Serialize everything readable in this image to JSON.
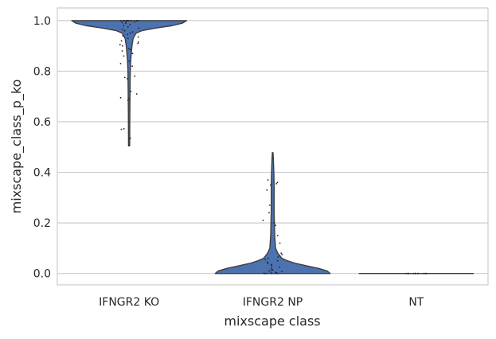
{
  "chart_data": {
    "type": "violin",
    "title": "",
    "xlabel": "mixscape class",
    "ylabel": "mixscape_class_p_ko",
    "categories": [
      "IFNGR2 KO",
      "IFNGR2 NP",
      "NT"
    ],
    "ylim": [
      -0.045,
      1.05
    ],
    "yticks": [
      0.0,
      0.2,
      0.4,
      0.6,
      0.8,
      1.0
    ],
    "ytick_labels": [
      "0.0",
      "0.2",
      "0.4",
      "0.6",
      "0.8",
      "1.0"
    ],
    "grid": "horizontal",
    "violin_color": "#4c72b0",
    "outline_color": "#3d3d3d",
    "point_color": "#222222",
    "series": [
      {
        "category": "IFNGR2 KO",
        "min": 0.505,
        "max": 1.0,
        "density": [
          [
            0.505,
            0.01
          ],
          [
            0.6,
            0.012
          ],
          [
            0.7,
            0.015
          ],
          [
            0.8,
            0.02
          ],
          [
            0.85,
            0.03
          ],
          [
            0.9,
            0.05
          ],
          [
            0.93,
            0.07
          ],
          [
            0.95,
            0.12
          ],
          [
            0.96,
            0.22
          ],
          [
            0.97,
            0.45
          ],
          [
            0.98,
            0.75
          ],
          [
            0.99,
            0.93
          ],
          [
            1.0,
            1.0
          ]
        ],
        "points": [
          0.507,
          0.535,
          0.57,
          0.572,
          0.685,
          0.69,
          0.695,
          0.71,
          0.72,
          0.77,
          0.775,
          0.78,
          0.82,
          0.83,
          0.84,
          0.86,
          0.87,
          0.88,
          0.885,
          0.89,
          0.9,
          0.905,
          0.91,
          0.915,
          0.92,
          0.93,
          0.935,
          0.94,
          0.945,
          0.95,
          0.955,
          0.96,
          0.965,
          0.97,
          0.975,
          0.98,
          0.985,
          0.99,
          0.992,
          0.995,
          0.997,
          0.999,
          1.0,
          1.0,
          1.0,
          1.0,
          1.0,
          1.0,
          1.0,
          1.0
        ]
      },
      {
        "category": "IFNGR2 NP",
        "min": 0.0,
        "max": 0.478,
        "density": [
          [
            0.0,
            1.0
          ],
          [
            0.01,
            0.95
          ],
          [
            0.02,
            0.8
          ],
          [
            0.03,
            0.6
          ],
          [
            0.04,
            0.4
          ],
          [
            0.05,
            0.26
          ],
          [
            0.06,
            0.16
          ],
          [
            0.08,
            0.09
          ],
          [
            0.1,
            0.05
          ],
          [
            0.15,
            0.035
          ],
          [
            0.2,
            0.03
          ],
          [
            0.25,
            0.025
          ],
          [
            0.3,
            0.025
          ],
          [
            0.35,
            0.025
          ],
          [
            0.4,
            0.02
          ],
          [
            0.45,
            0.012
          ],
          [
            0.478,
            0.006
          ]
        ],
        "points": [
          0.0,
          0.0,
          0.0,
          0.0,
          0.0,
          0.0,
          0.001,
          0.002,
          0.003,
          0.005,
          0.008,
          0.01,
          0.012,
          0.015,
          0.02,
          0.025,
          0.03,
          0.035,
          0.04,
          0.045,
          0.05,
          0.055,
          0.06,
          0.065,
          0.07,
          0.075,
          0.08,
          0.12,
          0.15,
          0.19,
          0.2,
          0.21,
          0.24,
          0.27,
          0.33,
          0.35,
          0.355,
          0.36,
          0.37
        ]
      },
      {
        "category": "NT",
        "min": 0.0,
        "max": 0.0,
        "density": [
          [
            0.0,
            1.0
          ]
        ],
        "points": [
          0.0,
          0.0,
          0.0,
          0.0,
          0.0,
          0.0,
          0.0,
          0.0,
          0.0,
          0.0,
          0.0,
          0.0
        ]
      }
    ]
  }
}
